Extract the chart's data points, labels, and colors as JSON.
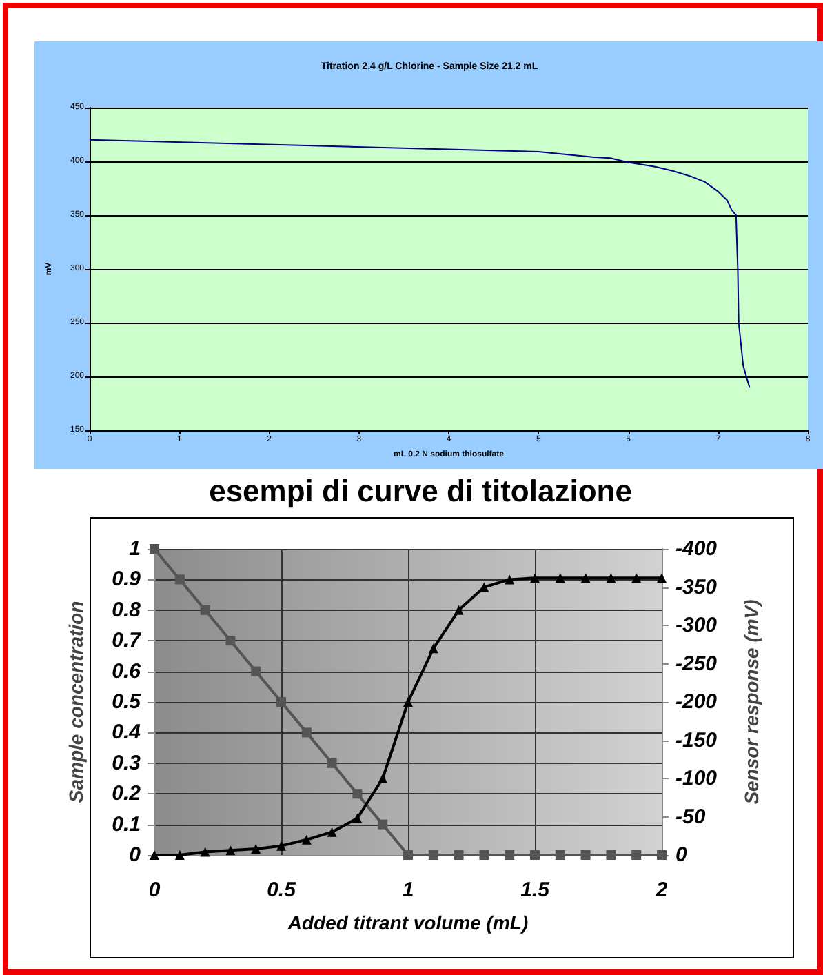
{
  "chart_data": [
    {
      "type": "line",
      "title": "Titration 2.4 g/L Chlorine - Sample Size 21.2 mL",
      "xlabel": "mL 0.2 N sodium thiosulfate",
      "ylabel": "mV",
      "xlim": [
        0,
        8
      ],
      "xticks": [
        0,
        1,
        2,
        3,
        4,
        5,
        6,
        7,
        8
      ],
      "ylim": [
        150,
        450
      ],
      "yticks": [
        150,
        200,
        250,
        300,
        350,
        400,
        450
      ],
      "grid": "y",
      "marker": "none",
      "series": [
        {
          "color": "#000080",
          "x": [
            0,
            5,
            5.6,
            5.8,
            6,
            6.3,
            6.5,
            6.7,
            6.85,
            7.0,
            7.1,
            7.15,
            7.2,
            7.22,
            7.23,
            7.28,
            7.35
          ],
          "values": [
            420,
            409,
            404,
            403,
            399,
            395,
            391,
            386,
            381,
            372,
            364,
            355,
            350,
            300,
            250,
            210,
            190
          ]
        }
      ]
    },
    {
      "type": "line",
      "title": "esempi di curve di titolazione",
      "xlabel": "Added titrant volume (mL)",
      "ylabel": "Sample concentration",
      "y2label": "Sensor response (mV)",
      "xlim": [
        0,
        2
      ],
      "xticks": [
        0,
        0.5,
        1,
        1.5,
        2
      ],
      "ylim": [
        0,
        1
      ],
      "yticks": [
        0,
        0.1,
        0.2,
        0.3,
        0.4,
        0.5,
        0.6,
        0.7,
        0.8,
        0.9,
        1
      ],
      "y2lim": [
        0,
        -400
      ],
      "y2ticks": [
        0,
        -50,
        -100,
        -150,
        -200,
        -250,
        -300,
        -350,
        -400
      ],
      "grid": true,
      "series": [
        {
          "color": "#555555",
          "marker": "square",
          "x": [
            0,
            0.1,
            0.2,
            0.3,
            0.4,
            0.5,
            0.6,
            0.7,
            0.8,
            0.9,
            1,
            1.1,
            1.2,
            1.3,
            1.4,
            1.5,
            1.6,
            1.7,
            1.8,
            1.9,
            2
          ],
          "values": [
            1,
            0.9,
            0.8,
            0.7,
            0.6,
            0.5,
            0.4,
            0.3,
            0.2,
            0.1,
            0,
            0,
            0,
            0,
            0,
            0,
            0,
            0,
            0,
            0,
            0
          ]
        },
        {
          "color": "#000000",
          "marker": "triangle",
          "axis": "y2",
          "x": [
            0,
            0.1,
            0.2,
            0.3,
            0.4,
            0.5,
            0.6,
            0.7,
            0.8,
            0.9,
            1,
            1.1,
            1.2,
            1.3,
            1.4,
            1.5,
            1.6,
            1.7,
            1.8,
            1.9,
            2
          ],
          "values": [
            0,
            0,
            -4,
            -6,
            -8,
            -12,
            -20,
            -30,
            -48,
            -100,
            -200,
            -270,
            -320,
            -350,
            -360,
            -362,
            -362,
            -362,
            -362,
            -362,
            -362
          ]
        }
      ]
    }
  ]
}
